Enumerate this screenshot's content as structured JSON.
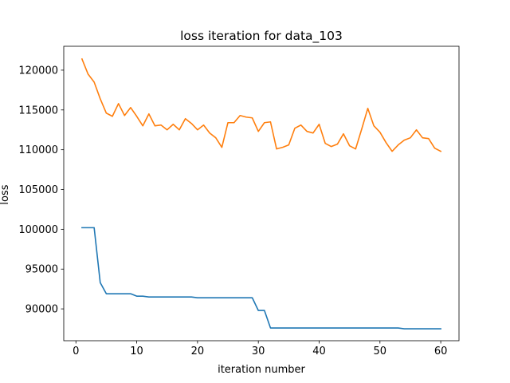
{
  "chart_data": {
    "type": "line",
    "title": "loss iteration for data_103",
    "xlabel": "iteration number",
    "ylabel": "loss",
    "xlim": [
      -2,
      63
    ],
    "ylim": [
      86000,
      123000
    ],
    "xticks": [
      0,
      10,
      20,
      30,
      40,
      50,
      60
    ],
    "yticks": [
      90000,
      95000,
      100000,
      105000,
      110000,
      115000,
      120000
    ],
    "grid": false,
    "legend": "none",
    "x": [
      1,
      2,
      3,
      4,
      5,
      6,
      7,
      8,
      9,
      10,
      11,
      12,
      13,
      14,
      15,
      16,
      17,
      18,
      19,
      20,
      21,
      22,
      23,
      24,
      25,
      26,
      27,
      28,
      29,
      30,
      31,
      32,
      33,
      34,
      35,
      36,
      37,
      38,
      39,
      40,
      41,
      42,
      43,
      44,
      45,
      46,
      47,
      48,
      49,
      50,
      51,
      52,
      53,
      54,
      55,
      56,
      57,
      58,
      59,
      60
    ],
    "series": [
      {
        "color": "#1f77b4",
        "values": [
          100200,
          100200,
          100200,
          93300,
          91900,
          91900,
          91900,
          91900,
          91900,
          91600,
          91600,
          91500,
          91500,
          91500,
          91500,
          91500,
          91500,
          91500,
          91500,
          91400,
          91400,
          91400,
          91400,
          91400,
          91400,
          91400,
          91400,
          91400,
          91400,
          89800,
          89800,
          87600,
          87600,
          87600,
          87600,
          87600,
          87600,
          87600,
          87600,
          87600,
          87600,
          87600,
          87600,
          87600,
          87600,
          87600,
          87600,
          87600,
          87600,
          87600,
          87600,
          87600,
          87600,
          87500,
          87500,
          87500,
          87500,
          87500,
          87500,
          87500
        ]
      },
      {
        "color": "#ff7f0e",
        "values": [
          121400,
          119500,
          118500,
          116400,
          114600,
          114200,
          115800,
          114300,
          115300,
          114200,
          113000,
          114500,
          113000,
          113100,
          112500,
          113200,
          112500,
          113900,
          113300,
          112500,
          113100,
          112100,
          111500,
          110300,
          113400,
          113400,
          114300,
          114100,
          114000,
          112300,
          113400,
          113500,
          110100,
          110300,
          110600,
          112700,
          113100,
          112300,
          112100,
          113200,
          110800,
          110400,
          110700,
          112000,
          110500,
          110100,
          112600,
          115200,
          113000,
          112200,
          110900,
          109800,
          110600,
          111200,
          111500,
          112500,
          111500,
          111400,
          110200,
          109800
        ]
      }
    ]
  }
}
